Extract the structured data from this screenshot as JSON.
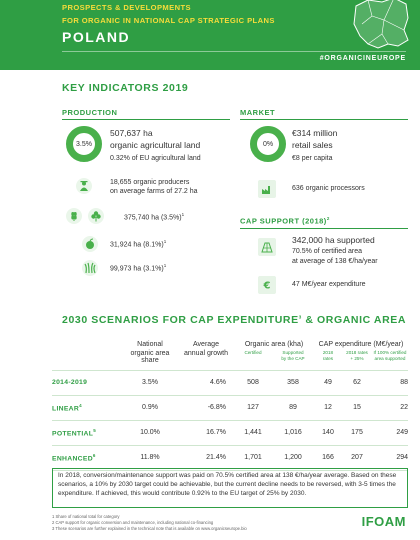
{
  "header": {
    "line1": "PROSPECTS & DEVELOPMENTS",
    "line2": "FOR ORGANIC IN NATIONAL CAP STRATEGIC PLANS",
    "country": "POLAND",
    "hashtag": "#ORGANICINEUROPE",
    "colors": {
      "band": "#2f9e44",
      "headline": "#f6dc3a",
      "map": "#ffffff"
    }
  },
  "key_indicators": {
    "title": "KEY INDICATORS 2019",
    "production": {
      "title": "PRODUCTION",
      "share_pct": "3.5%",
      "area": "507,637 ha",
      "area_label": "organic agricultural land",
      "eu_share": "0.32% of EU agricultural land",
      "producers_line1": "18,655 organic producers",
      "producers_line2": "on average farms of 27.2 ha",
      "item1": "375,740 ha (3.5%)",
      "item1_sup": "1",
      "item2": "31,924 ha (8.1%)",
      "item2_sup": "1",
      "item3": "99,973 ha (3.1%)",
      "item3_sup": "1",
      "icons": [
        "donut-chart",
        "farmer-icon",
        "cereal-icon",
        "clover-icon",
        "fruit-icon",
        "grass-icon"
      ]
    },
    "market": {
      "title": "MARKET",
      "share_pct": "0%",
      "sales": "€314 million",
      "sales_label": "retail sales",
      "per_capita": "€8 per capita",
      "processors": "636 organic processors"
    },
    "cap_support": {
      "title": "CAP SUPPORT (2018)",
      "title_sup": "2",
      "supported": "342,000 ha supported",
      "certified": "70.5% of certified area",
      "average": "at average of 138 €/ha/year",
      "expenditure": "47 M€/year expenditure"
    }
  },
  "scenarios": {
    "title_part1": "2030 SCENARIOS FOR CAP EXPENDITURE",
    "title_sup": "3",
    "title_part2": " & ORGANIC AREA",
    "headers": {
      "share": [
        "National",
        "organic area share"
      ],
      "growth": [
        "Average",
        "annual growth"
      ],
      "area_group": "Organic area (kha)",
      "area_cert": "Certified",
      "area_supp": [
        "Supported",
        "by the CAP"
      ],
      "cap_group": "CAP expenditure (M€/year)",
      "cap_2018": [
        "2018",
        "rates"
      ],
      "cap_25": [
        "2018 rates",
        "+ 25%"
      ],
      "cap_100": [
        "If 100% certified",
        "area supported"
      ]
    },
    "rows": [
      {
        "label": "2014-2019",
        "sup": "",
        "share": "3.5%",
        "growth": "4.6%",
        "certified": "508",
        "supported": "358",
        "r2018": "49",
        "r25": "62",
        "r100": "88"
      },
      {
        "label": "LINEAR",
        "sup": "4",
        "share": "0.9%",
        "growth": "-6.8%",
        "certified": "127",
        "supported": "89",
        "r2018": "12",
        "r25": "15",
        "r100": "22"
      },
      {
        "label": "POTENTIAL",
        "sup": "5",
        "share": "10.0%",
        "growth": "16.7%",
        "certified": "1,441",
        "supported": "1,016",
        "r2018": "140",
        "r25": "175",
        "r100": "249"
      },
      {
        "label": "ENHANCED",
        "sup": "6",
        "share": "11.8%",
        "growth": "21.4%",
        "certified": "1,701",
        "supported": "1,200",
        "r2018": "166",
        "r25": "207",
        "r100": "294"
      }
    ]
  },
  "summary": "In 2018, conversion/maintenance support was paid on 70.5% certified area at 138 €/ha/year average. Based on these scenarios, a 10% by 2030 target could be achievable, but the current decline needs to be reversed, with 3-5 times the expenditure. If achieved, this would contribute 0.92% to the EU target of 25% by 2030.",
  "footnotes": [
    "1 Share of national total for category",
    "2 CAP support for organic conversion and maintenance, including national co-financing",
    "3 These scenarios are further explained in the technical note that is available on www.organicseurope.bio"
  ],
  "logo": "IFOAM"
}
